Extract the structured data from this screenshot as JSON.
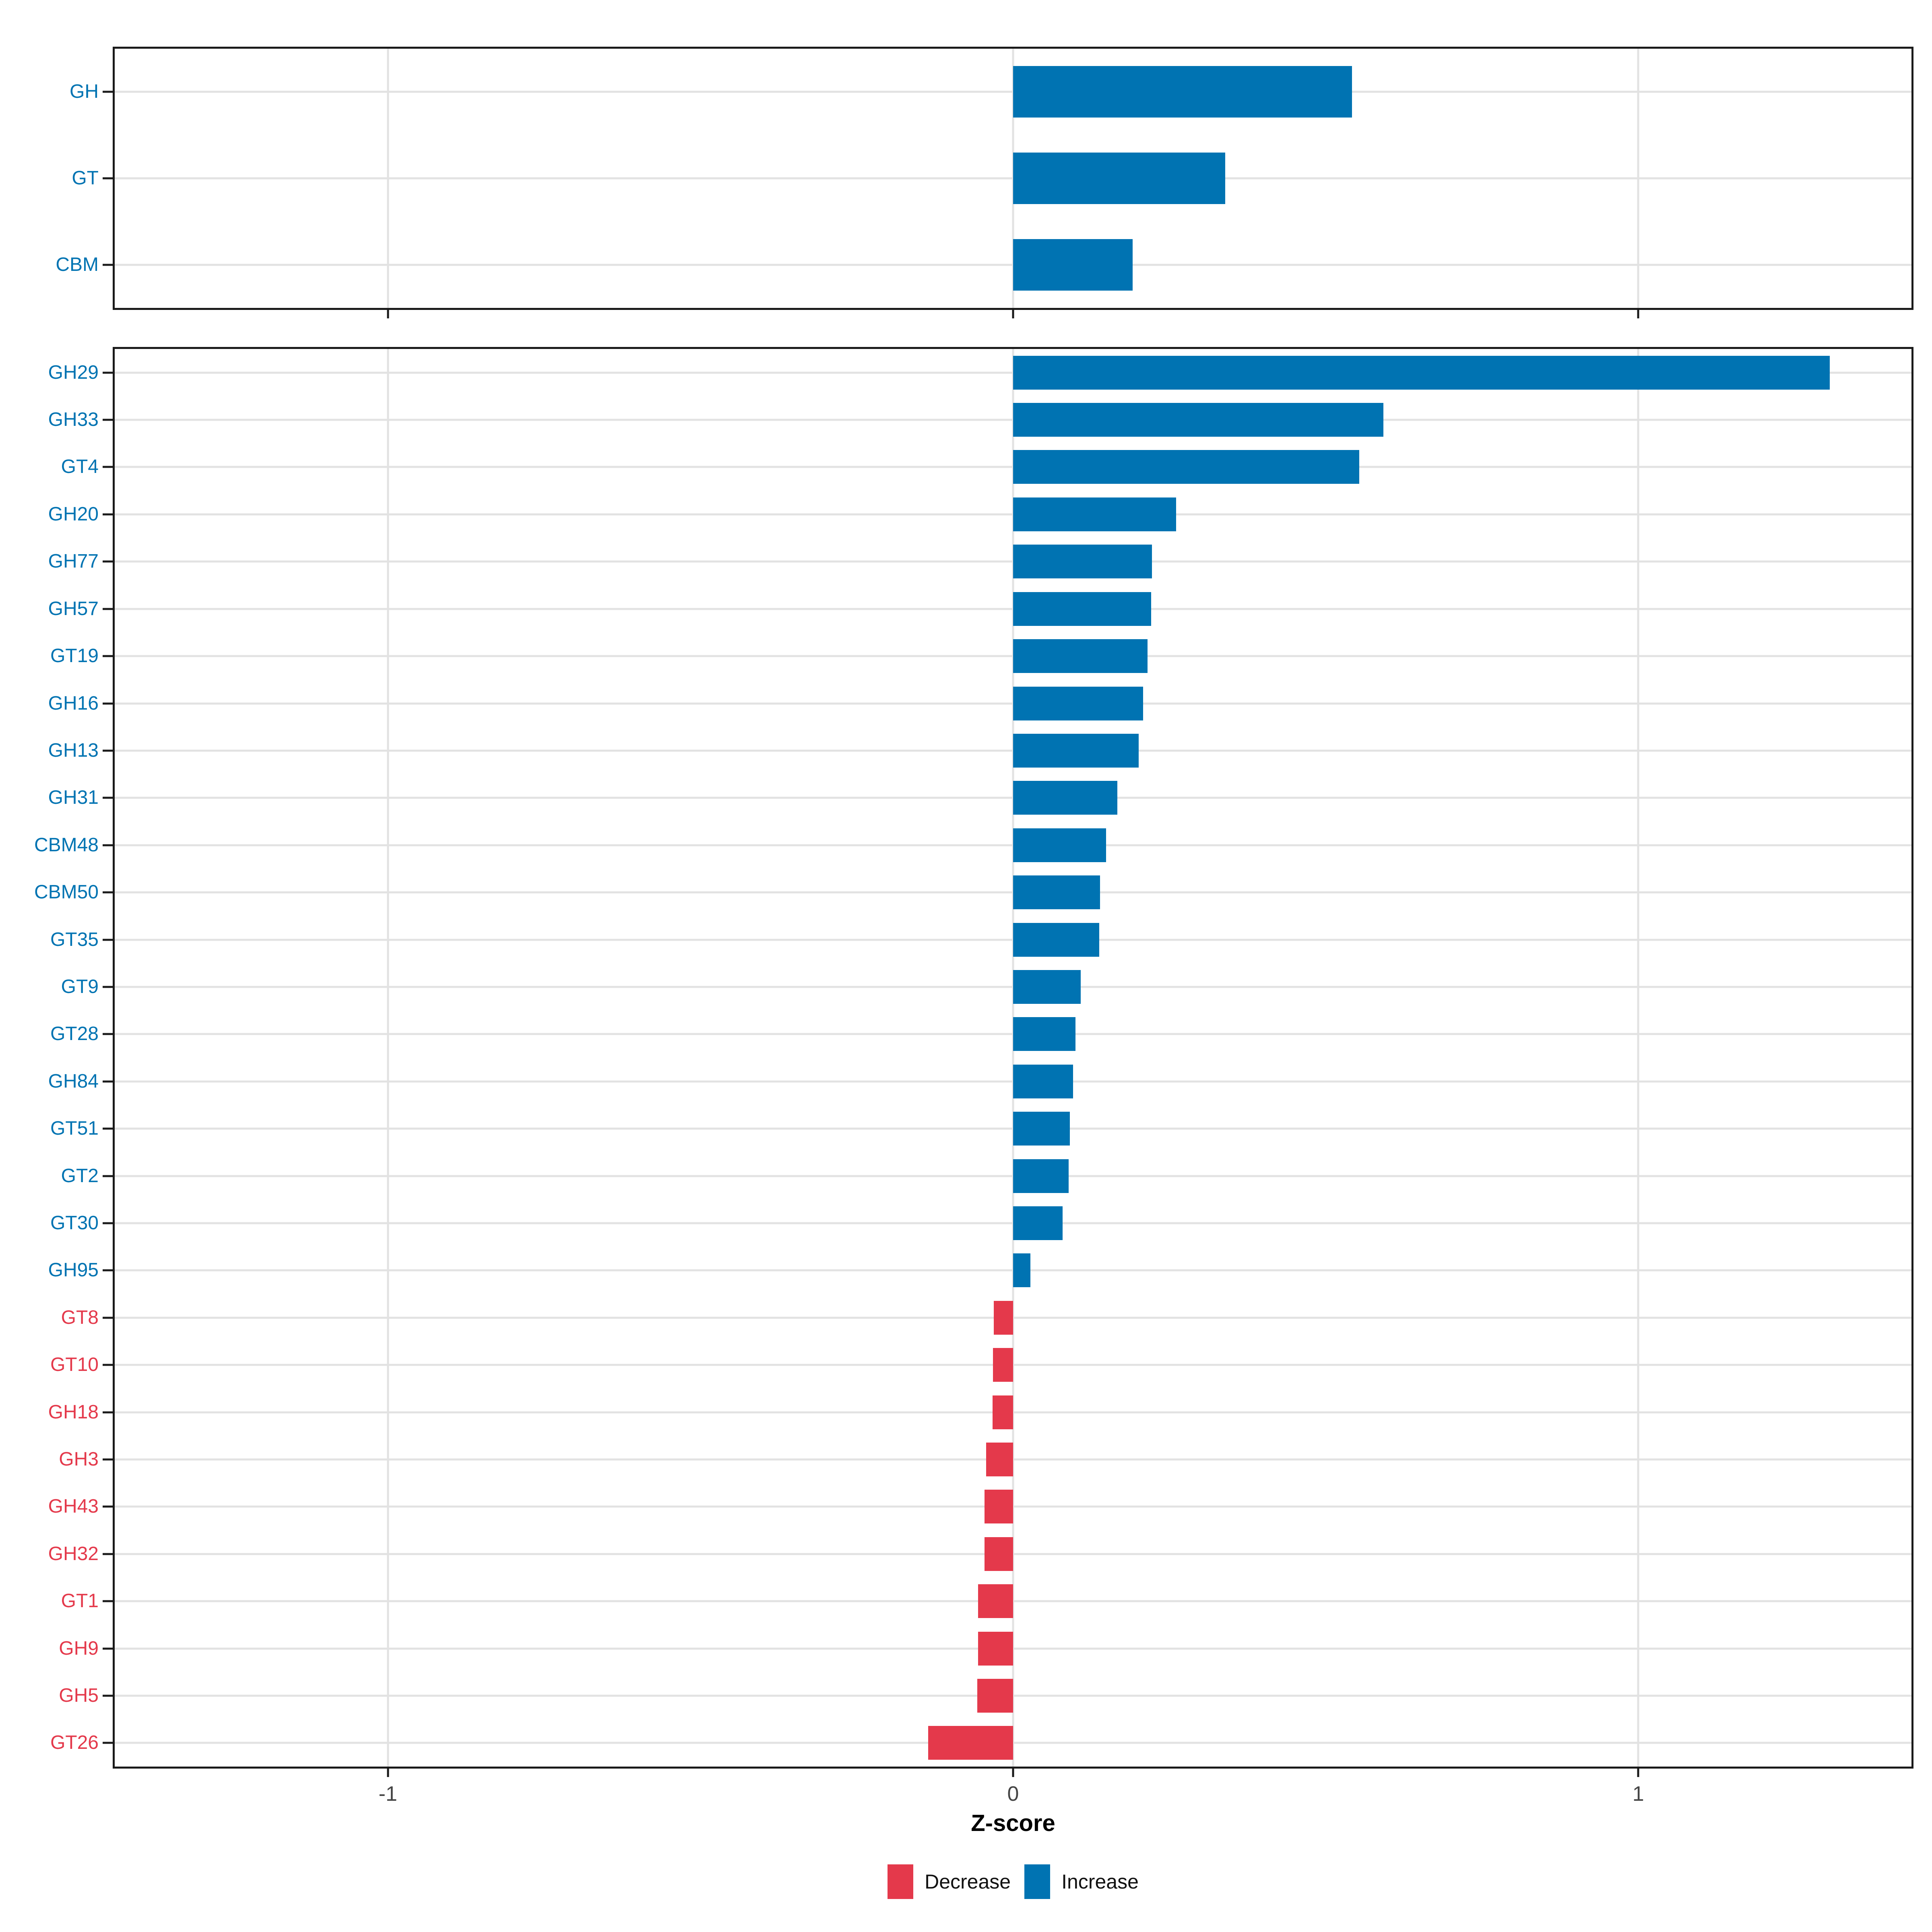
{
  "colors": {
    "increase": "#0073b2",
    "decrease": "#e4394b",
    "grid": "#e2e2e2",
    "panel_border": "#1a1a1a",
    "axis_text": "#454545"
  },
  "x_axis": {
    "title": "Z-score",
    "range": [
      -1.437,
      1.437
    ],
    "ticks": [
      {
        "label": "-1",
        "value": -1
      },
      {
        "label": "0",
        "value": 0
      },
      {
        "label": "1",
        "value": 1
      }
    ]
  },
  "legend": {
    "items": [
      {
        "label": "Decrease",
        "direction": "decrease"
      },
      {
        "label": "Increase",
        "direction": "increase"
      }
    ]
  },
  "chart_data": [
    {
      "type": "bar",
      "orientation": "horizontal",
      "panel": "cazyme-classes",
      "xlabel": "Z-score",
      "rows": [
        {
          "label": "GH",
          "value": 0.542,
          "direction": "increase"
        },
        {
          "label": "GT",
          "value": 0.339,
          "direction": "increase"
        },
        {
          "label": "CBM",
          "value": 0.191,
          "direction": "increase"
        }
      ]
    },
    {
      "type": "bar",
      "orientation": "horizontal",
      "panel": "cazyme-families",
      "xlabel": "Z-score",
      "rows": [
        {
          "label": "GH29",
          "value": 1.306,
          "direction": "increase"
        },
        {
          "label": "GH33",
          "value": 0.592,
          "direction": "increase"
        },
        {
          "label": "GT4",
          "value": 0.554,
          "direction": "increase"
        },
        {
          "label": "GH20",
          "value": 0.261,
          "direction": "increase"
        },
        {
          "label": "GH77",
          "value": 0.222,
          "direction": "increase"
        },
        {
          "label": "GH57",
          "value": 0.221,
          "direction": "increase"
        },
        {
          "label": "GT19",
          "value": 0.215,
          "direction": "increase"
        },
        {
          "label": "GH16",
          "value": 0.208,
          "direction": "increase"
        },
        {
          "label": "GH13",
          "value": 0.201,
          "direction": "increase"
        },
        {
          "label": "GH31",
          "value": 0.167,
          "direction": "increase"
        },
        {
          "label": "CBM48",
          "value": 0.149,
          "direction": "increase"
        },
        {
          "label": "CBM50",
          "value": 0.139,
          "direction": "increase"
        },
        {
          "label": "GT35",
          "value": 0.138,
          "direction": "increase"
        },
        {
          "label": "GT9",
          "value": 0.108,
          "direction": "increase"
        },
        {
          "label": "GT28",
          "value": 0.1,
          "direction": "increase"
        },
        {
          "label": "GH84",
          "value": 0.096,
          "direction": "increase"
        },
        {
          "label": "GT51",
          "value": 0.091,
          "direction": "increase"
        },
        {
          "label": "GT2",
          "value": 0.089,
          "direction": "increase"
        },
        {
          "label": "GT30",
          "value": 0.079,
          "direction": "increase"
        },
        {
          "label": "GH95",
          "value": 0.028,
          "direction": "increase"
        },
        {
          "label": "GT8",
          "value": -0.031,
          "direction": "decrease"
        },
        {
          "label": "GT10",
          "value": -0.032,
          "direction": "decrease"
        },
        {
          "label": "GH18",
          "value": -0.033,
          "direction": "decrease"
        },
        {
          "label": "GH3",
          "value": -0.043,
          "direction": "decrease"
        },
        {
          "label": "GH43",
          "value": -0.046,
          "direction": "decrease"
        },
        {
          "label": "GH32",
          "value": -0.046,
          "direction": "decrease"
        },
        {
          "label": "GT1",
          "value": -0.056,
          "direction": "decrease"
        },
        {
          "label": "GH9",
          "value": -0.056,
          "direction": "decrease"
        },
        {
          "label": "GH5",
          "value": -0.057,
          "direction": "decrease"
        },
        {
          "label": "GT26",
          "value": -0.136,
          "direction": "decrease"
        }
      ]
    }
  ]
}
